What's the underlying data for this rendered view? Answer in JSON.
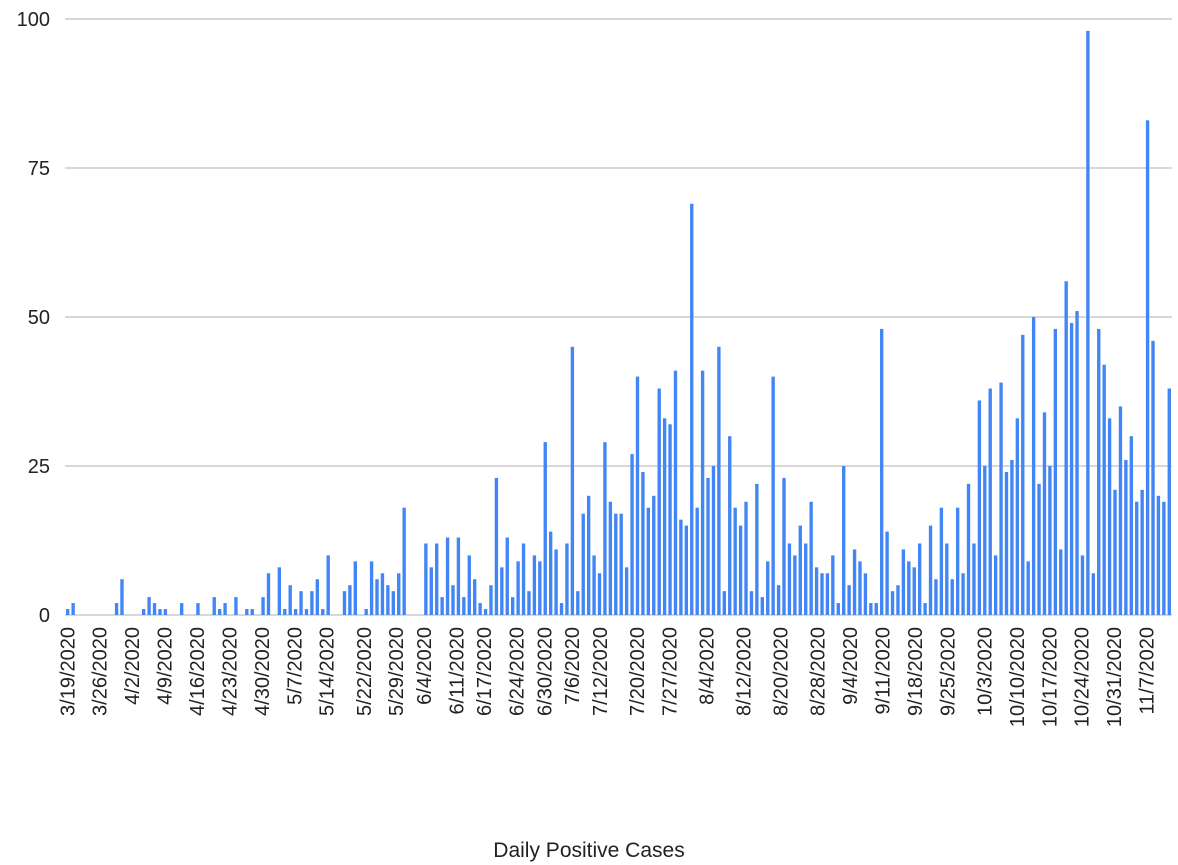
{
  "chart_data": {
    "type": "bar",
    "title": "",
    "xlabel": "Daily Positive Cases",
    "ylabel": "",
    "ylim": [
      0,
      100
    ],
    "yticks": [
      "0",
      "25",
      "50",
      "75",
      "100"
    ],
    "grid": true,
    "bar_color": "#4285f4",
    "grid_color": "#cccccc",
    "x_start": "3/19/2020",
    "x_end": "11/12/2020",
    "xtick_labels": [
      "3/19/2020",
      "3/26/2020",
      "4/2/2020",
      "4/9/2020",
      "4/16/2020",
      "4/23/2020",
      "4/30/2020",
      "5/7/2020",
      "5/14/2020",
      "5/22/2020",
      "5/29/2020",
      "6/4/2020",
      "6/11/2020",
      "6/17/2020",
      "6/24/2020",
      "6/30/2020",
      "7/6/2020",
      "7/12/2020",
      "7/20/2020",
      "7/27/2020",
      "8/4/2020",
      "8/12/2020",
      "8/20/2020",
      "8/28/2020",
      "9/4/2020",
      "9/11/2020",
      "9/18/2020",
      "9/25/2020",
      "10/3/2020",
      "10/10/2020",
      "10/17/2020",
      "10/24/2020",
      "10/31/2020",
      "11/7/2020"
    ],
    "values": [
      1,
      2,
      0,
      0,
      0,
      0,
      0,
      0,
      0,
      2,
      6,
      0,
      0,
      0,
      1,
      3,
      2,
      1,
      1,
      0,
      0,
      2,
      0,
      0,
      2,
      0,
      0,
      3,
      1,
      2,
      0,
      3,
      0,
      1,
      1,
      0,
      3,
      7,
      0,
      8,
      1,
      5,
      1,
      4,
      1,
      4,
      6,
      1,
      10,
      0,
      0,
      4,
      5,
      9,
      0,
      1,
      9,
      6,
      7,
      5,
      4,
      7,
      18,
      0,
      0,
      0,
      12,
      8,
      12,
      3,
      13,
      5,
      13,
      3,
      10,
      6,
      2,
      1,
      5,
      23,
      8,
      13,
      3,
      9,
      12,
      4,
      10,
      9,
      29,
      14,
      11,
      2,
      12,
      45,
      4,
      17,
      20,
      10,
      7,
      29,
      19,
      17,
      17,
      8,
      27,
      40,
      24,
      18,
      20,
      38,
      33,
      32,
      41,
      16,
      15,
      69,
      18,
      41,
      23,
      25,
      45,
      4,
      30,
      18,
      15,
      19,
      4,
      22,
      3,
      9,
      40,
      5,
      23,
      12,
      10,
      15,
      12,
      19,
      8,
      7,
      7,
      10,
      2,
      25,
      5,
      11,
      9,
      7,
      2,
      2,
      48,
      14,
      4,
      5,
      11,
      9,
      8,
      12,
      2,
      15,
      6,
      18,
      12,
      6,
      18,
      7,
      22,
      12,
      36,
      25,
      38,
      10,
      39,
      24,
      26,
      33,
      47,
      9,
      50,
      22,
      34,
      25,
      48,
      11,
      56,
      49,
      51,
      10,
      98,
      7,
      48,
      42,
      33,
      21,
      35,
      26,
      30,
      19,
      21,
      83,
      46,
      20,
      19,
      38
    ]
  }
}
